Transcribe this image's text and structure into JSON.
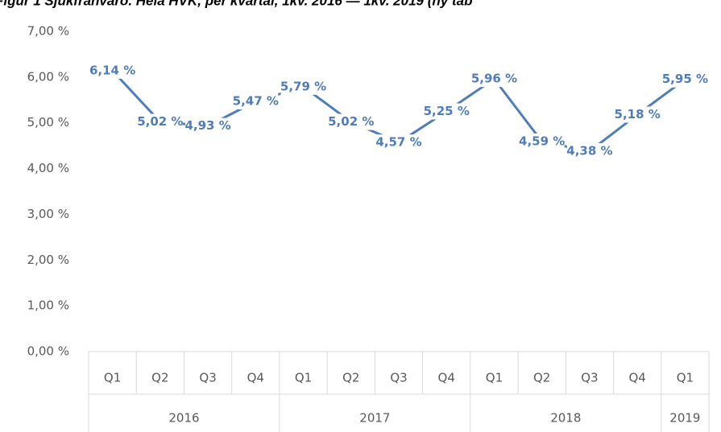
{
  "chart_data": {
    "type": "line",
    "title": "Figur 1 Sjukfrånvaro. Hela HVK, per kvartal, 1kv. 2016 — 1kv. 2019 (ny tab",
    "groups": [
      {
        "name": "2016",
        "categories": [
          "Q1",
          "Q2",
          "Q3",
          "Q4"
        ]
      },
      {
        "name": "2017",
        "categories": [
          "Q1",
          "Q2",
          "Q3",
          "Q4"
        ]
      },
      {
        "name": "2018",
        "categories": [
          "Q1",
          "Q2",
          "Q3",
          "Q4"
        ]
      },
      {
        "name": "2019",
        "categories": [
          "Q1"
        ]
      }
    ],
    "values": [
      6.14,
      5.02,
      4.93,
      5.47,
      5.79,
      5.02,
      4.57,
      5.25,
      5.96,
      4.59,
      4.38,
      5.18,
      5.95
    ],
    "value_labels": [
      "6,14 %",
      "5,02 %",
      "4,93 %",
      "5,47 %",
      "5,79 %",
      "5,02 %",
      "4,57 %",
      "5,25 %",
      "5,96 %",
      "4,59 %",
      "4,38 %",
      "5,18 %",
      "5,95 %"
    ],
    "color": "#4f7dbb",
    "ylim": [
      0,
      7
    ],
    "yticks": [
      {
        "value": 0,
        "label": "0,00 %"
      },
      {
        "value": 1,
        "label": "1,00 %"
      },
      {
        "value": 2,
        "label": "2,00 %"
      },
      {
        "value": 3,
        "label": "3,00 %"
      },
      {
        "value": 4,
        "label": "4,00 %"
      },
      {
        "value": 5,
        "label": "5,00 %"
      },
      {
        "value": 6,
        "label": "6,00 %"
      },
      {
        "value": 7,
        "label": "7,00 %"
      }
    ],
    "grid": false
  }
}
